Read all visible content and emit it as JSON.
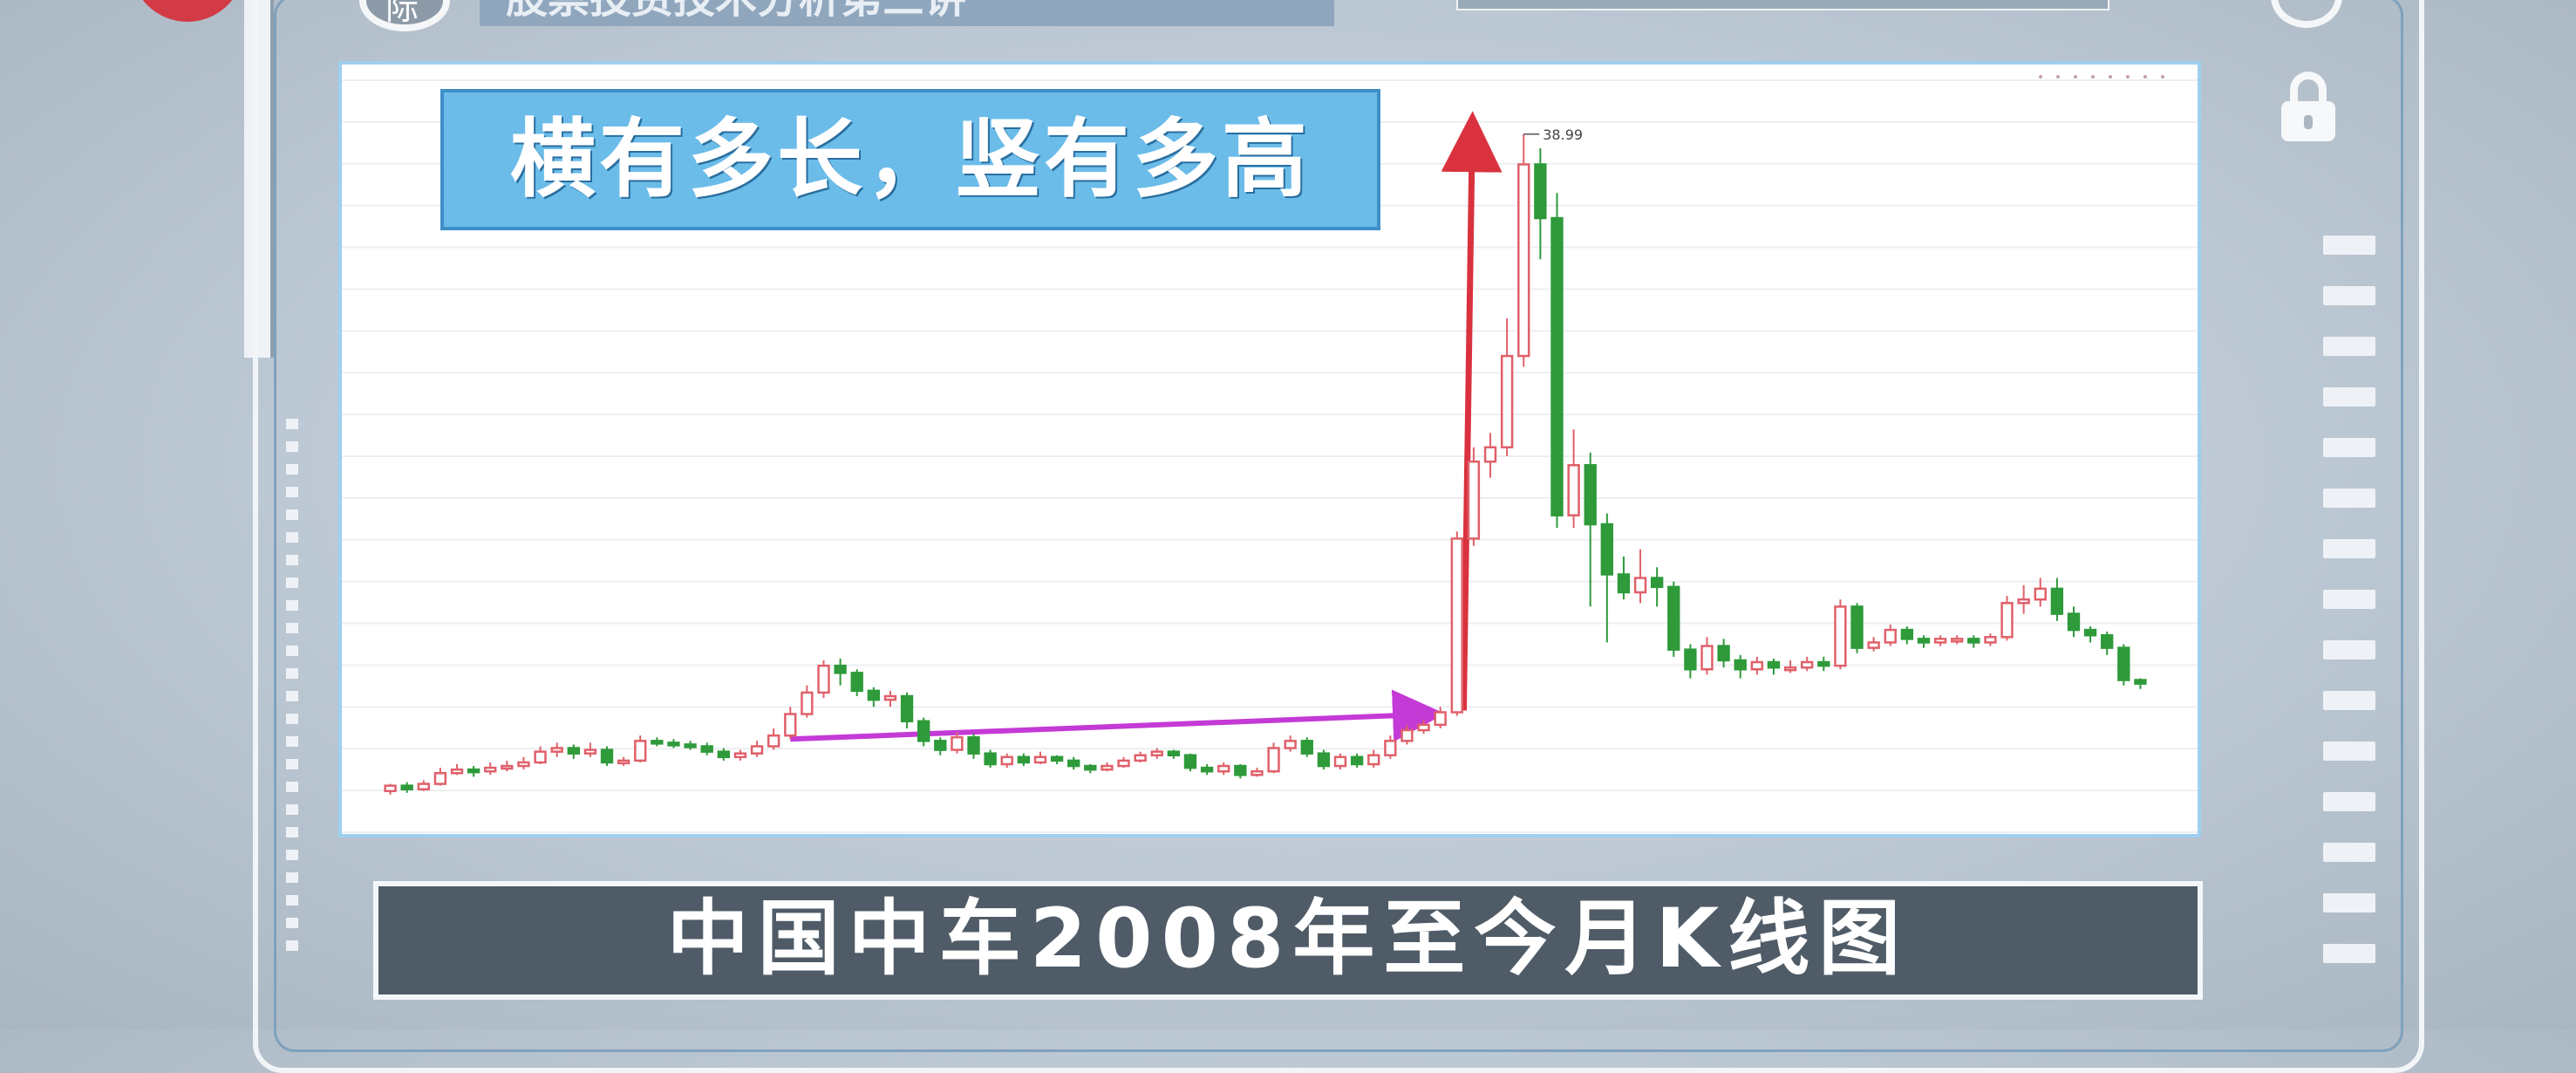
{
  "program": {
    "title": "股票投资技术分析第三讲",
    "badge": "际"
  },
  "headline": "横有多长，竖有多高",
  "caption": "中国中车2008年至今月K线图",
  "colors": {
    "up": "#e0606a",
    "down": "#2e9a3a",
    "horizontal_arrow": "#c43ad6",
    "vertical_arrow": "#d9323e",
    "headline_bg": "#6bbce9",
    "caption_bg": "#4f5c67"
  },
  "icons": [
    "settings-icon",
    "lock-icon"
  ],
  "chart_data": {
    "type": "candlestick",
    "title": "中国中车2008年至今月K线图",
    "max_label": "38.99",
    "max_value": 38.99,
    "ylim": [
      0,
      42
    ],
    "grid": true,
    "period": "monthly",
    "candles": [
      [
        2.3,
        2.6,
        2.1,
        2.7
      ],
      [
        2.6,
        2.4,
        2.2,
        2.8
      ],
      [
        2.4,
        2.7,
        2.3,
        2.9
      ],
      [
        2.7,
        3.3,
        2.6,
        3.6
      ],
      [
        3.3,
        3.5,
        3.2,
        3.8
      ],
      [
        3.5,
        3.4,
        3.1,
        3.7
      ],
      [
        3.4,
        3.6,
        3.2,
        3.9
      ],
      [
        3.6,
        3.7,
        3.4,
        4.0
      ],
      [
        3.7,
        3.9,
        3.5,
        4.2
      ],
      [
        3.9,
        4.5,
        3.8,
        4.8
      ],
      [
        4.5,
        4.7,
        4.2,
        5.0
      ],
      [
        4.7,
        4.4,
        4.1,
        4.9
      ],
      [
        4.4,
        4.6,
        4.2,
        5.0
      ],
      [
        4.6,
        3.9,
        3.7,
        4.8
      ],
      [
        3.9,
        4.0,
        3.7,
        4.2
      ],
      [
        4.0,
        5.1,
        3.9,
        5.4
      ],
      [
        5.1,
        5.0,
        4.8,
        5.3
      ],
      [
        5.0,
        4.9,
        4.7,
        5.2
      ],
      [
        4.9,
        4.8,
        4.6,
        5.1
      ],
      [
        4.8,
        4.5,
        4.3,
        5.0
      ],
      [
        4.5,
        4.2,
        4.0,
        4.7
      ],
      [
        4.2,
        4.4,
        4.0,
        4.6
      ],
      [
        4.4,
        4.8,
        4.2,
        5.1
      ],
      [
        4.8,
        5.4,
        4.6,
        5.8
      ],
      [
        5.4,
        6.6,
        5.2,
        7.0
      ],
      [
        6.6,
        7.8,
        6.4,
        8.2
      ],
      [
        7.8,
        9.3,
        7.5,
        9.6
      ],
      [
        9.3,
        8.9,
        8.2,
        9.7
      ],
      [
        8.9,
        7.9,
        7.6,
        9.1
      ],
      [
        7.9,
        7.4,
        7.0,
        8.1
      ],
      [
        7.4,
        7.6,
        7.0,
        7.9
      ],
      [
        7.6,
        6.2,
        5.8,
        7.8
      ],
      [
        6.2,
        5.1,
        4.8,
        6.4
      ],
      [
        5.1,
        4.6,
        4.3,
        5.3
      ],
      [
        4.6,
        5.3,
        4.4,
        5.6
      ],
      [
        5.3,
        4.4,
        4.1,
        5.5
      ],
      [
        4.4,
        3.8,
        3.6,
        4.6
      ],
      [
        3.8,
        4.2,
        3.6,
        4.4
      ],
      [
        4.2,
        3.9,
        3.7,
        4.4
      ],
      [
        3.9,
        4.2,
        3.8,
        4.5
      ],
      [
        4.2,
        4.0,
        3.8,
        4.3
      ],
      [
        4.0,
        3.7,
        3.5,
        4.2
      ],
      [
        3.7,
        3.5,
        3.3,
        3.8
      ],
      [
        3.5,
        3.7,
        3.4,
        3.9
      ],
      [
        3.7,
        4.0,
        3.6,
        4.2
      ],
      [
        4.0,
        4.3,
        3.9,
        4.5
      ],
      [
        4.3,
        4.5,
        4.1,
        4.7
      ],
      [
        4.5,
        4.3,
        4.1,
        4.6
      ],
      [
        4.3,
        3.6,
        3.4,
        4.4
      ],
      [
        3.6,
        3.4,
        3.2,
        3.8
      ],
      [
        3.4,
        3.7,
        3.2,
        3.9
      ],
      [
        3.7,
        3.2,
        3.0,
        3.8
      ],
      [
        3.2,
        3.4,
        3.1,
        3.6
      ],
      [
        3.4,
        4.7,
        3.3,
        5.0
      ],
      [
        4.7,
        5.1,
        4.5,
        5.4
      ],
      [
        5.1,
        4.4,
        4.2,
        5.3
      ],
      [
        4.4,
        3.7,
        3.5,
        4.6
      ],
      [
        3.7,
        4.2,
        3.5,
        4.4
      ],
      [
        4.2,
        3.8,
        3.6,
        4.4
      ],
      [
        3.8,
        4.3,
        3.6,
        4.6
      ],
      [
        4.3,
        5.1,
        4.1,
        5.4
      ],
      [
        5.1,
        5.7,
        4.9,
        6.0
      ],
      [
        5.7,
        6.0,
        5.5,
        6.3
      ],
      [
        6.0,
        6.7,
        5.8,
        7.0
      ],
      [
        6.7,
        16.4,
        6.5,
        16.8
      ],
      [
        16.4,
        20.7,
        16.0,
        21.5
      ],
      [
        20.7,
        21.5,
        19.8,
        22.3
      ],
      [
        21.5,
        26.6,
        21.0,
        28.7
      ],
      [
        26.6,
        37.3,
        26.0,
        38.99
      ],
      [
        37.3,
        34.3,
        32.0,
        38.2
      ],
      [
        34.3,
        17.7,
        17.0,
        35.7
      ],
      [
        17.7,
        20.5,
        17.0,
        22.5
      ],
      [
        20.5,
        17.2,
        12.6,
        21.2
      ],
      [
        17.2,
        14.4,
        10.6,
        17.8
      ],
      [
        14.4,
        13.4,
        13.0,
        15.4
      ],
      [
        13.4,
        14.2,
        12.8,
        15.8
      ],
      [
        14.2,
        13.7,
        12.6,
        14.8
      ],
      [
        13.7,
        10.2,
        9.8,
        14.0
      ],
      [
        10.2,
        9.1,
        8.6,
        10.5
      ],
      [
        9.1,
        10.4,
        8.8,
        10.9
      ],
      [
        10.4,
        9.6,
        9.2,
        10.8
      ],
      [
        9.6,
        9.1,
        8.6,
        9.9
      ],
      [
        9.1,
        9.5,
        8.8,
        9.8
      ],
      [
        9.5,
        9.2,
        8.8,
        9.7
      ],
      [
        9.2,
        9.2,
        8.9,
        9.6
      ],
      [
        9.2,
        9.5,
        9.0,
        9.8
      ],
      [
        9.5,
        9.3,
        9.0,
        9.8
      ],
      [
        9.3,
        12.6,
        9.1,
        13.0
      ],
      [
        12.6,
        10.3,
        10.0,
        12.8
      ],
      [
        10.3,
        10.6,
        10.1,
        10.9
      ],
      [
        10.6,
        11.3,
        10.4,
        11.6
      ],
      [
        11.3,
        10.8,
        10.5,
        11.5
      ],
      [
        10.8,
        10.6,
        10.3,
        11.0
      ],
      [
        10.6,
        10.8,
        10.4,
        11.0
      ],
      [
        10.8,
        10.8,
        10.5,
        11.0
      ],
      [
        10.8,
        10.6,
        10.3,
        11.0
      ],
      [
        10.6,
        10.9,
        10.4,
        11.1
      ],
      [
        10.9,
        12.8,
        10.7,
        13.2
      ],
      [
        12.8,
        13.0,
        12.2,
        13.8
      ],
      [
        13.0,
        13.6,
        12.6,
        14.2
      ],
      [
        13.6,
        12.2,
        11.8,
        14.2
      ],
      [
        12.2,
        11.3,
        10.9,
        12.6
      ],
      [
        11.3,
        11.0,
        10.6,
        11.5
      ],
      [
        11.0,
        10.3,
        9.9,
        11.2
      ],
      [
        10.3,
        8.5,
        8.2,
        10.5
      ],
      [
        8.5,
        8.3,
        8.0,
        8.6
      ]
    ]
  }
}
